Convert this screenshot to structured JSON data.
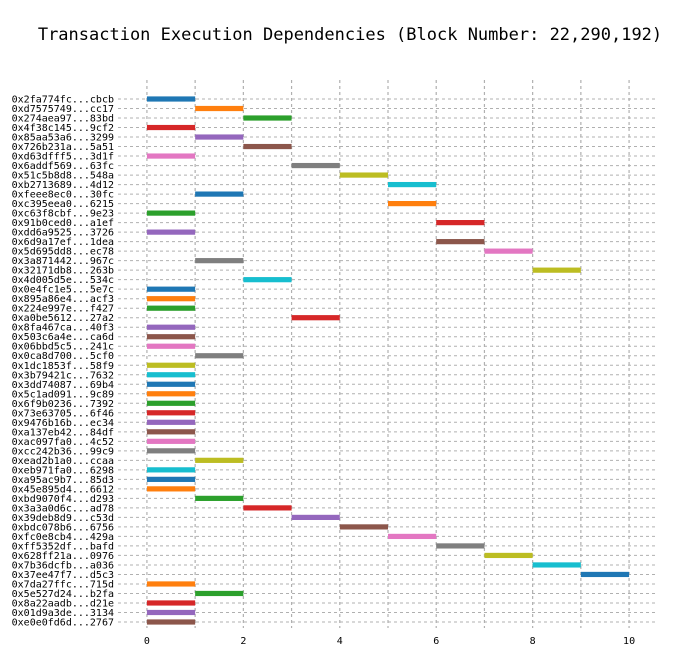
{
  "chart_data": {
    "type": "bar",
    "orientation": "horizontal-range",
    "title": "Transaction Execution Dependencies (Block Number: 22,290,192)",
    "xlabel": "",
    "ylabel": "",
    "xlim": [
      -0.6,
      10.6
    ],
    "xticks": [
      0,
      2,
      4,
      6,
      8,
      10
    ],
    "grid": true,
    "legend": "none",
    "palette": [
      "#1f77b4",
      "#ff7f0e",
      "#2ca02c",
      "#d62728",
      "#9467bd",
      "#8c564b",
      "#e377c2",
      "#7f7f7f",
      "#bcbd22",
      "#17becf"
    ],
    "transactions": [
      {
        "label": "0x2fa774fc...cbcb",
        "start": 0,
        "end": 1,
        "color": "#1f77b4"
      },
      {
        "label": "0xd7575749...cc17",
        "start": 1,
        "end": 2,
        "color": "#ff7f0e"
      },
      {
        "label": "0x274aea97...83bd",
        "start": 2,
        "end": 3,
        "color": "#2ca02c"
      },
      {
        "label": "0x4f38c145...9cf2",
        "start": 0,
        "end": 1,
        "color": "#d62728"
      },
      {
        "label": "0x85aa53a6...3299",
        "start": 1,
        "end": 2,
        "color": "#9467bd"
      },
      {
        "label": "0x726b231a...5a51",
        "start": 2,
        "end": 3,
        "color": "#8c564b"
      },
      {
        "label": "0xd63dfff5...3d1f",
        "start": 0,
        "end": 1,
        "color": "#e377c2"
      },
      {
        "label": "0x6addf569...63fc",
        "start": 3,
        "end": 4,
        "color": "#7f7f7f"
      },
      {
        "label": "0x51c5b8d8...548a",
        "start": 4,
        "end": 5,
        "color": "#bcbd22"
      },
      {
        "label": "0xb2713689...4d12",
        "start": 5,
        "end": 6,
        "color": "#17becf"
      },
      {
        "label": "0xfeee8ec0...30fc",
        "start": 1,
        "end": 2,
        "color": "#1f77b4"
      },
      {
        "label": "0xc395eea0...6215",
        "start": 5,
        "end": 6,
        "color": "#ff7f0e"
      },
      {
        "label": "0xc63f8cbf...9e23",
        "start": 0,
        "end": 1,
        "color": "#2ca02c"
      },
      {
        "label": "0x91b0ced0...a1ef",
        "start": 6,
        "end": 7,
        "color": "#d62728"
      },
      {
        "label": "0xdd6a9525...3726",
        "start": 0,
        "end": 1,
        "color": "#9467bd"
      },
      {
        "label": "0x6d9a17ef...1dea",
        "start": 6,
        "end": 7,
        "color": "#8c564b"
      },
      {
        "label": "0x5d695dd8...ec78",
        "start": 7,
        "end": 8,
        "color": "#e377c2"
      },
      {
        "label": "0x3a871442...967c",
        "start": 1,
        "end": 2,
        "color": "#7f7f7f"
      },
      {
        "label": "0x32171db8...263b",
        "start": 8,
        "end": 9,
        "color": "#bcbd22"
      },
      {
        "label": "0x4d005d5e...534c",
        "start": 2,
        "end": 3,
        "color": "#17becf"
      },
      {
        "label": "0x0e4fc1e5...5e7c",
        "start": 0,
        "end": 1,
        "color": "#1f77b4"
      },
      {
        "label": "0x895a86e4...acf3",
        "start": 0,
        "end": 1,
        "color": "#ff7f0e"
      },
      {
        "label": "0x224e997e...f427",
        "start": 0,
        "end": 1,
        "color": "#2ca02c"
      },
      {
        "label": "0xa0be5612...27a2",
        "start": 3,
        "end": 4,
        "color": "#d62728"
      },
      {
        "label": "0x8fa467ca...40f3",
        "start": 0,
        "end": 1,
        "color": "#9467bd"
      },
      {
        "label": "0x503c6a4e...ca6d",
        "start": 0,
        "end": 1,
        "color": "#8c564b"
      },
      {
        "label": "0x06bbd5c5...241c",
        "start": 0,
        "end": 1,
        "color": "#e377c2"
      },
      {
        "label": "0x0ca8d700...5cf0",
        "start": 1,
        "end": 2,
        "color": "#7f7f7f"
      },
      {
        "label": "0x1dc1853f...58f9",
        "start": 0,
        "end": 1,
        "color": "#bcbd22"
      },
      {
        "label": "0x3b79421c...7632",
        "start": 0,
        "end": 1,
        "color": "#17becf"
      },
      {
        "label": "0x3dd74087...69b4",
        "start": 0,
        "end": 1,
        "color": "#1f77b4"
      },
      {
        "label": "0x5c1ad091...9c89",
        "start": 0,
        "end": 1,
        "color": "#ff7f0e"
      },
      {
        "label": "0x6f9b0236...7392",
        "start": 0,
        "end": 1,
        "color": "#2ca02c"
      },
      {
        "label": "0x73e63705...6f46",
        "start": 0,
        "end": 1,
        "color": "#d62728"
      },
      {
        "label": "0x9476b16b...ec34",
        "start": 0,
        "end": 1,
        "color": "#9467bd"
      },
      {
        "label": "0xa137eb42...84df",
        "start": 0,
        "end": 1,
        "color": "#8c564b"
      },
      {
        "label": "0xac097fa0...4c52",
        "start": 0,
        "end": 1,
        "color": "#e377c2"
      },
      {
        "label": "0xcc242b36...99c9",
        "start": 0,
        "end": 1,
        "color": "#7f7f7f"
      },
      {
        "label": "0xead2b1a0...ccaa",
        "start": 1,
        "end": 2,
        "color": "#bcbd22"
      },
      {
        "label": "0xeb971fa0...6298",
        "start": 0,
        "end": 1,
        "color": "#17becf"
      },
      {
        "label": "0xa95ac9b7...85d3",
        "start": 0,
        "end": 1,
        "color": "#1f77b4"
      },
      {
        "label": "0x45e895d4...6612",
        "start": 0,
        "end": 1,
        "color": "#ff7f0e"
      },
      {
        "label": "0xbd9070f4...d293",
        "start": 1,
        "end": 2,
        "color": "#2ca02c"
      },
      {
        "label": "0x3a3a0d6c...ad78",
        "start": 2,
        "end": 3,
        "color": "#d62728"
      },
      {
        "label": "0x39deb8d9...c53d",
        "start": 3,
        "end": 4,
        "color": "#9467bd"
      },
      {
        "label": "0xbdc078b6...6756",
        "start": 4,
        "end": 5,
        "color": "#8c564b"
      },
      {
        "label": "0xfc0e8cb4...429a",
        "start": 5,
        "end": 6,
        "color": "#e377c2"
      },
      {
        "label": "0xff5352df...bafd",
        "start": 6,
        "end": 7,
        "color": "#7f7f7f"
      },
      {
        "label": "0x628ff21a...0976",
        "start": 7,
        "end": 8,
        "color": "#bcbd22"
      },
      {
        "label": "0x7b36dcfb...a036",
        "start": 8,
        "end": 9,
        "color": "#17becf"
      },
      {
        "label": "0x37ee47f7...d5c3",
        "start": 9,
        "end": 10,
        "color": "#1f77b4"
      },
      {
        "label": "0x7da27ffc...715d",
        "start": 0,
        "end": 1,
        "color": "#ff7f0e"
      },
      {
        "label": "0x5e527d24...b2fa",
        "start": 1,
        "end": 2,
        "color": "#2ca02c"
      },
      {
        "label": "0x8a22aadb...d21e",
        "start": 0,
        "end": 1,
        "color": "#d62728"
      },
      {
        "label": "0x01d9a3de...3134",
        "start": 0,
        "end": 1,
        "color": "#9467bd"
      },
      {
        "label": "0xe0e0fd6d...2767",
        "start": 0,
        "end": 1,
        "color": "#8c564b"
      }
    ]
  }
}
